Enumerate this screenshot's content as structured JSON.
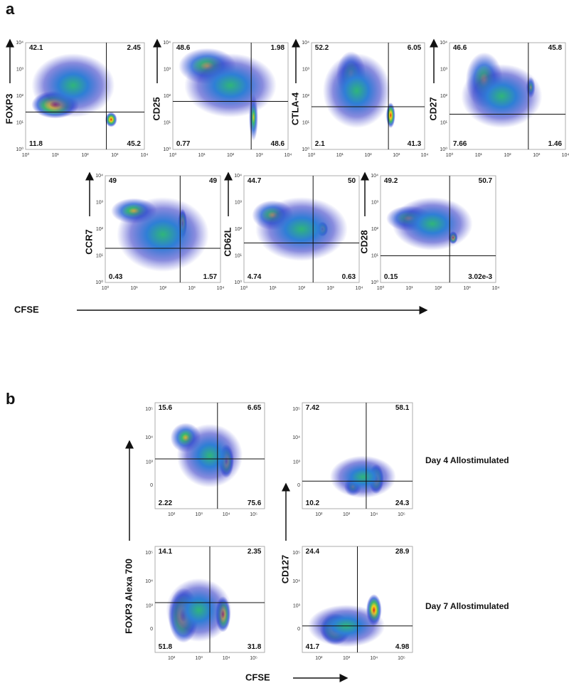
{
  "panel_a": {
    "label": "a",
    "x_axis_label": "CFSE",
    "x_ticks": [
      "10⁰",
      "10¹",
      "10²",
      "10³",
      "10⁴"
    ],
    "y_ticks": [
      "10⁰",
      "10¹",
      "10²",
      "10³",
      "10⁴"
    ],
    "plots": [
      {
        "y_label": "FOXP3",
        "quadrants": {
          "upper_left": "42.1",
          "upper_right": "2.45",
          "lower_left": "11.8",
          "lower_right": "45.2"
        }
      },
      {
        "y_label": "CD25",
        "quadrants": {
          "upper_left": "48.6",
          "upper_right": "1.98",
          "lower_left": "0.77",
          "lower_right": "48.6"
        }
      },
      {
        "y_label": "CTLA-4",
        "quadrants": {
          "upper_left": "52.2",
          "upper_right": "6.05",
          "lower_left": "2.1",
          "lower_right": "41.3"
        }
      },
      {
        "y_label": "CD27",
        "quadrants": {
          "upper_left": "46.6",
          "upper_right": "45.8",
          "lower_left": "7.66",
          "lower_right": "1.46"
        }
      },
      {
        "y_label": "CCR7",
        "quadrants": {
          "upper_left": "49",
          "upper_right": "49",
          "lower_left": "0.43",
          "lower_right": "1.57"
        }
      },
      {
        "y_label": "CD62L",
        "quadrants": {
          "upper_left": "44.7",
          "upper_right": "50",
          "lower_left": "4.74",
          "lower_right": "0.63"
        }
      },
      {
        "y_label": "CD28",
        "quadrants": {
          "upper_left": "49.2",
          "upper_right": "50.7",
          "lower_left": "0.15",
          "lower_right": "3.02e-3"
        }
      }
    ]
  },
  "panel_b": {
    "label": "b",
    "x_axis_label": "CFSE",
    "y_axis_labels": [
      "FOXP3 Alexa 700",
      "CD127"
    ],
    "x_ticks": [
      "10²",
      "10³",
      "10⁴",
      "10⁵"
    ],
    "y_ticks": [
      "10⁵",
      "10⁴",
      "10³",
      "0"
    ],
    "row_labels": [
      "Day 4 Allostimulated",
      "Day 7 Allostimulated"
    ],
    "plots": [
      {
        "quadrants": {
          "upper_left": "15.6",
          "upper_right": "6.65",
          "lower_left": "2.22",
          "lower_right": "75.6"
        }
      },
      {
        "quadrants": {
          "upper_left": "7.42",
          "upper_right": "58.1",
          "lower_left": "10.2",
          "lower_right": "24.3"
        }
      },
      {
        "quadrants": {
          "upper_left": "14.1",
          "upper_right": "2.35",
          "lower_left": "51.8",
          "lower_right": "31.8"
        }
      },
      {
        "quadrants": {
          "upper_left": "24.4",
          "upper_right": "28.9",
          "lower_left": "41.7",
          "lower_right": "4.98"
        }
      }
    ]
  }
}
